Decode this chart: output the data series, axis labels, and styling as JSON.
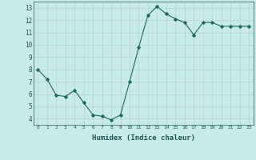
{
  "x": [
    0,
    1,
    2,
    3,
    4,
    5,
    6,
    7,
    8,
    9,
    10,
    11,
    12,
    13,
    14,
    15,
    16,
    17,
    18,
    19,
    20,
    21,
    22,
    23
  ],
  "y": [
    8.0,
    7.2,
    5.9,
    5.8,
    6.3,
    5.3,
    4.3,
    4.2,
    3.9,
    4.3,
    7.0,
    9.8,
    12.4,
    13.1,
    12.5,
    12.1,
    11.8,
    10.8,
    11.8,
    11.8,
    11.5,
    11.5,
    11.5,
    11.5
  ],
  "xlabel": "Humidex (Indice chaleur)",
  "line_color": "#1a6b5a",
  "marker": "D",
  "marker_size": 1.8,
  "linewidth": 0.8,
  "bg_color": "#c8eae8",
  "grid_color": "#b5d5d2",
  "tick_label_color": "#1a5a52",
  "xlabel_color": "#1a5a52",
  "ylim": [
    3.5,
    13.5
  ],
  "xlim": [
    -0.5,
    23.5
  ],
  "yticks": [
    4,
    5,
    6,
    7,
    8,
    9,
    10,
    11,
    12,
    13
  ],
  "xticks": [
    0,
    1,
    2,
    3,
    4,
    5,
    6,
    7,
    8,
    9,
    10,
    11,
    12,
    13,
    14,
    15,
    16,
    17,
    18,
    19,
    20,
    21,
    22,
    23
  ]
}
